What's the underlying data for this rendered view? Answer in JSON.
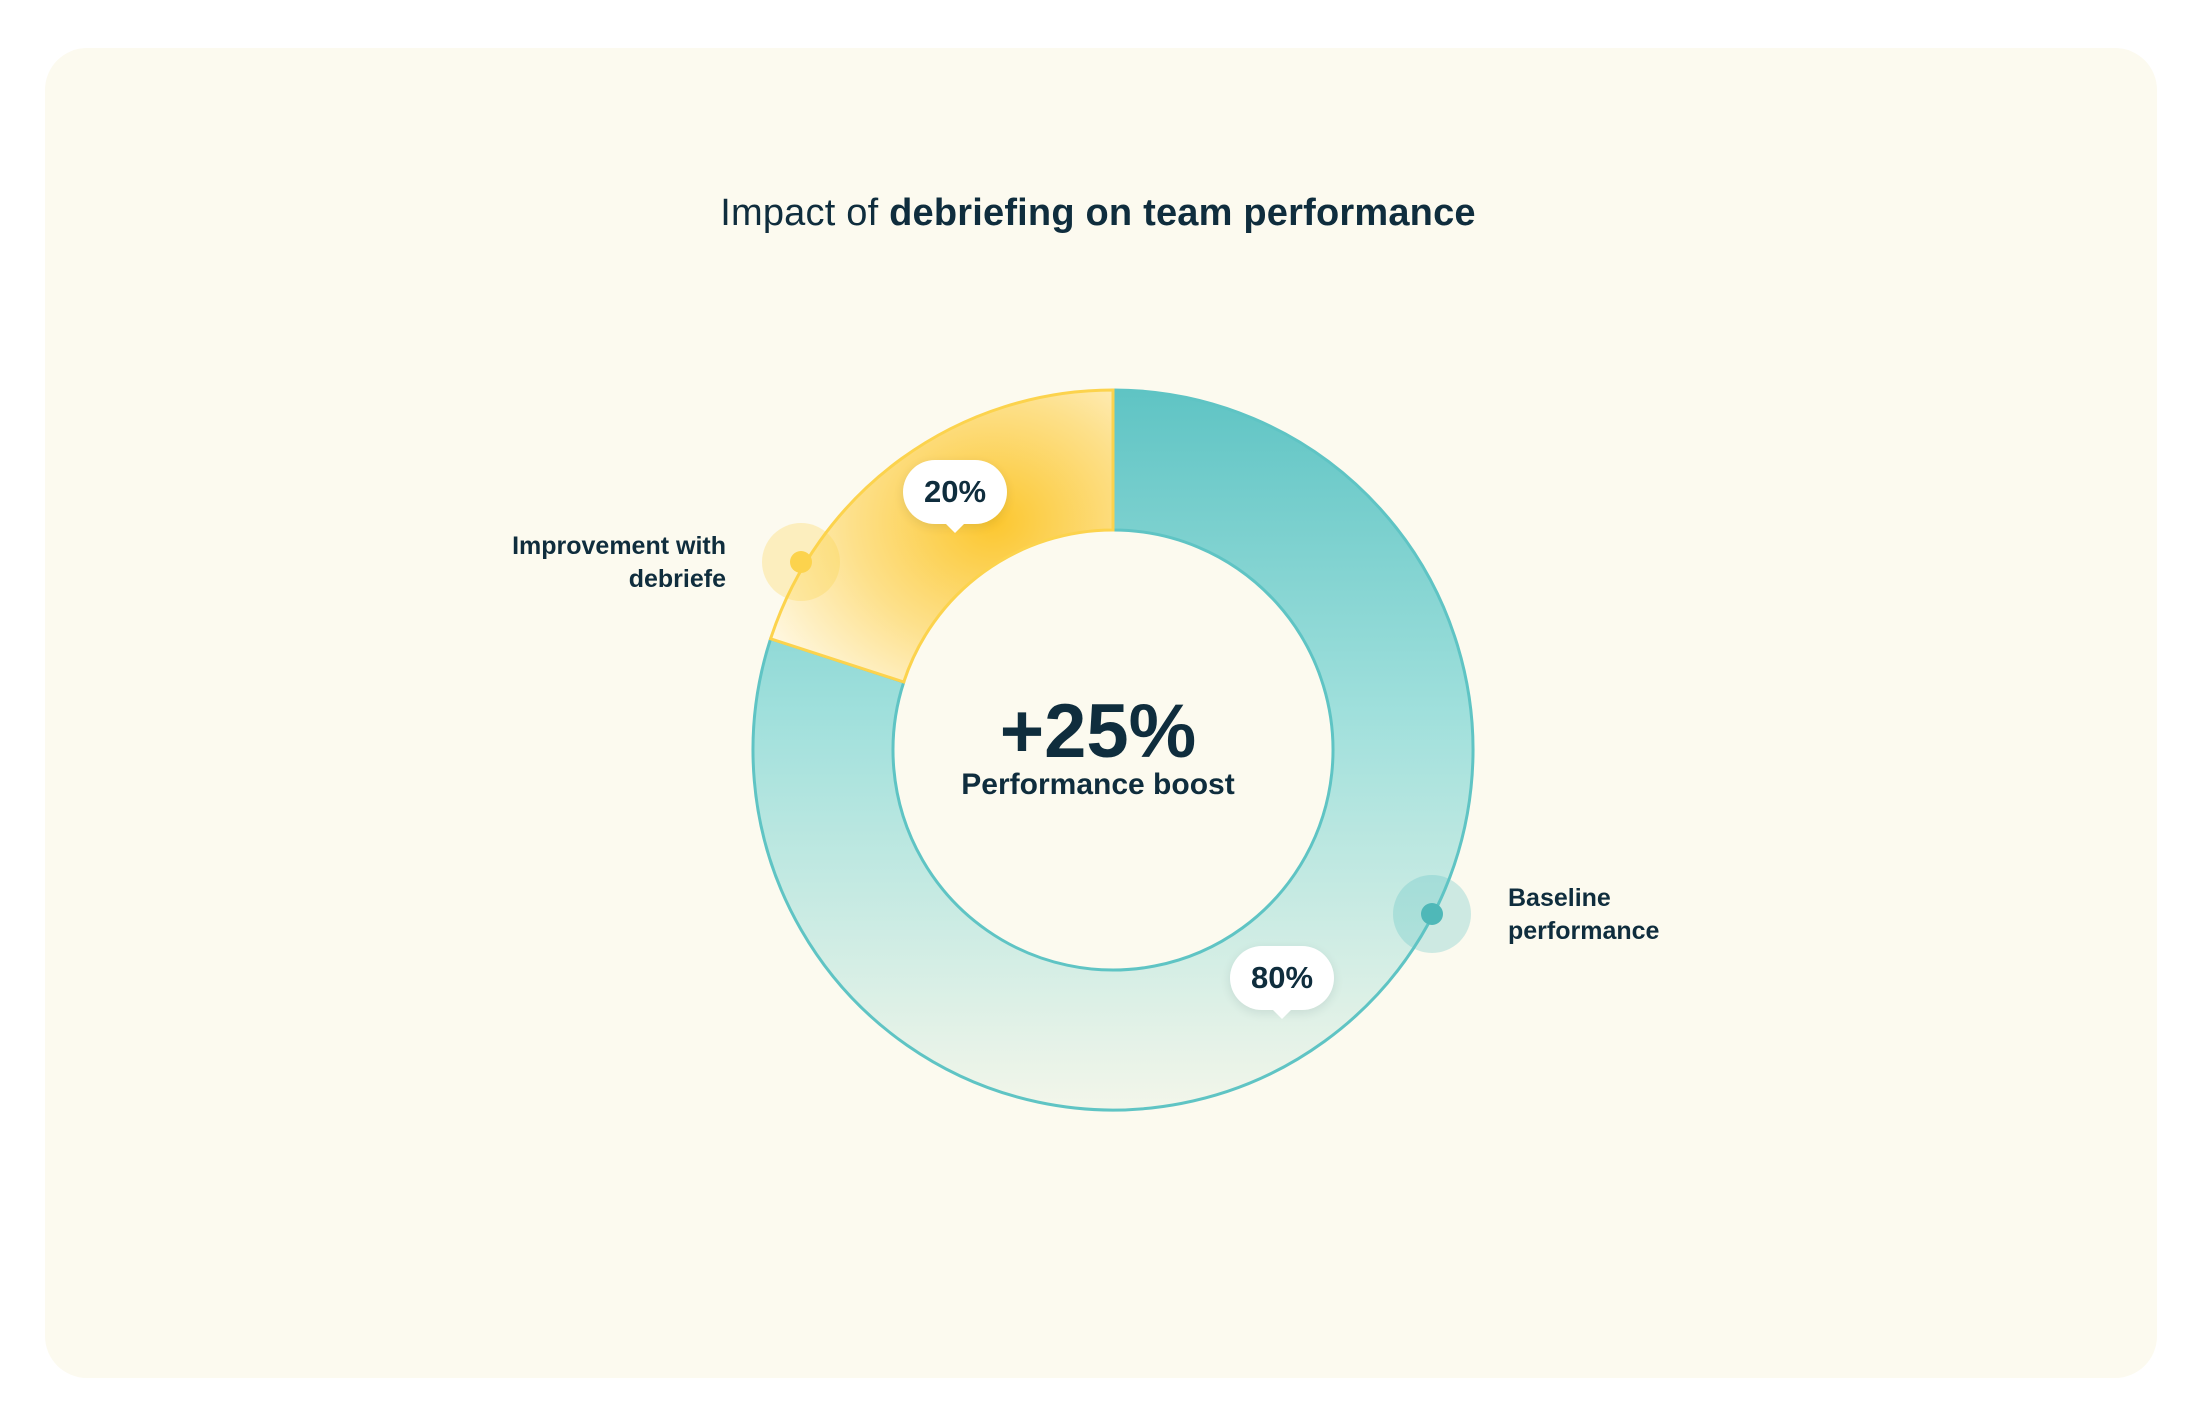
{
  "title": {
    "light": "Impact of ",
    "bold": "debriefing on team performance"
  },
  "center": {
    "value": "+25%",
    "label": "Performance boost"
  },
  "chart_data": {
    "type": "pie",
    "variant": "donut",
    "title": "Impact of debriefing on team performance",
    "slices": [
      {
        "label": "Improvement with debriefe",
        "value": 20,
        "display": "20%",
        "color": "#fcd34d"
      },
      {
        "label": "Baseline performance",
        "value": 80,
        "display": "80%",
        "color": "#5fc4c4"
      }
    ],
    "center_annotation": "+25% Performance boost",
    "legend": "callouts"
  },
  "callouts": {
    "improvement": {
      "line1": "Improvement with",
      "line2": "debriefe"
    },
    "baseline": {
      "line1": "Baseline",
      "line2": "performance"
    }
  },
  "colors": {
    "background": "#fcfaef",
    "text": "#0f2d3d",
    "baseline": "#5fc4c4",
    "improvement": "#fcd34d"
  }
}
